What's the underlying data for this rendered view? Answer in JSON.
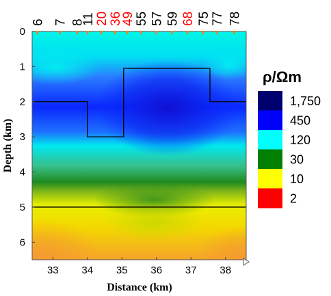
{
  "chart_data": {
    "type": "heatmap",
    "title": "",
    "xlabel": "Distance (km)",
    "ylabel": "Depth (km)",
    "xlim": [
      32.4,
      38.6
    ],
    "ylim": [
      0,
      6.5
    ],
    "y_inverted": true,
    "x_ticks": [
      33,
      34,
      35,
      36,
      37,
      38
    ],
    "y_ticks": [
      0,
      1,
      2,
      3,
      4,
      5,
      6
    ],
    "stations": [
      {
        "label": "6",
        "x": 32.55,
        "highlight": false
      },
      {
        "label": "7",
        "x": 33.2,
        "highlight": false
      },
      {
        "label": "8",
        "x": 33.7,
        "highlight": false
      },
      {
        "label": "11",
        "x": 34.0,
        "highlight": false
      },
      {
        "label": "20",
        "x": 34.4,
        "highlight": true
      },
      {
        "label": "36",
        "x": 34.8,
        "highlight": true
      },
      {
        "label": "49",
        "x": 35.15,
        "highlight": true
      },
      {
        "label": "55",
        "x": 35.55,
        "highlight": false
      },
      {
        "label": "57",
        "x": 36.0,
        "highlight": false
      },
      {
        "label": "59",
        "x": 36.45,
        "highlight": false
      },
      {
        "label": "68",
        "x": 36.9,
        "highlight": true
      },
      {
        "label": "75",
        "x": 37.35,
        "highlight": false
      },
      {
        "label": "77",
        "x": 37.75,
        "highlight": false
      },
      {
        "label": "78",
        "x": 38.25,
        "highlight": false
      }
    ],
    "legend": {
      "title": "ρ/Ωm",
      "entries": [
        {
          "label": "1,750",
          "color": "#00006e"
        },
        {
          "label": "450",
          "color": "#0000ff"
        },
        {
          "label": "120",
          "color": "#00ffff"
        },
        {
          "label": "30",
          "color": "#007f00"
        },
        {
          "label": "10",
          "color": "#ffff00"
        },
        {
          "label": "2",
          "color": "#ff0000"
        }
      ]
    },
    "overlay_model": {
      "upper_boundary": [
        [
          32.4,
          2.0
        ],
        [
          34.0,
          2.0
        ],
        [
          34.0,
          3.0
        ],
        [
          35.05,
          3.0
        ],
        [
          35.05,
          1.05
        ],
        [
          37.55,
          1.05
        ],
        [
          37.55,
          2.0
        ],
        [
          38.6,
          2.0
        ]
      ],
      "lower_boundary": [
        [
          32.4,
          5.0
        ],
        [
          38.6,
          5.0
        ]
      ]
    },
    "colors": {
      "cyan": "#00f5e8",
      "blue": "#0a28ff",
      "deep_blue": "#1010d0",
      "green": "#1f8a1f",
      "yellow": "#f6f400",
      "orange": "#f8a020",
      "marker": "#e08a20",
      "highlight_text": "#ff0000"
    }
  }
}
